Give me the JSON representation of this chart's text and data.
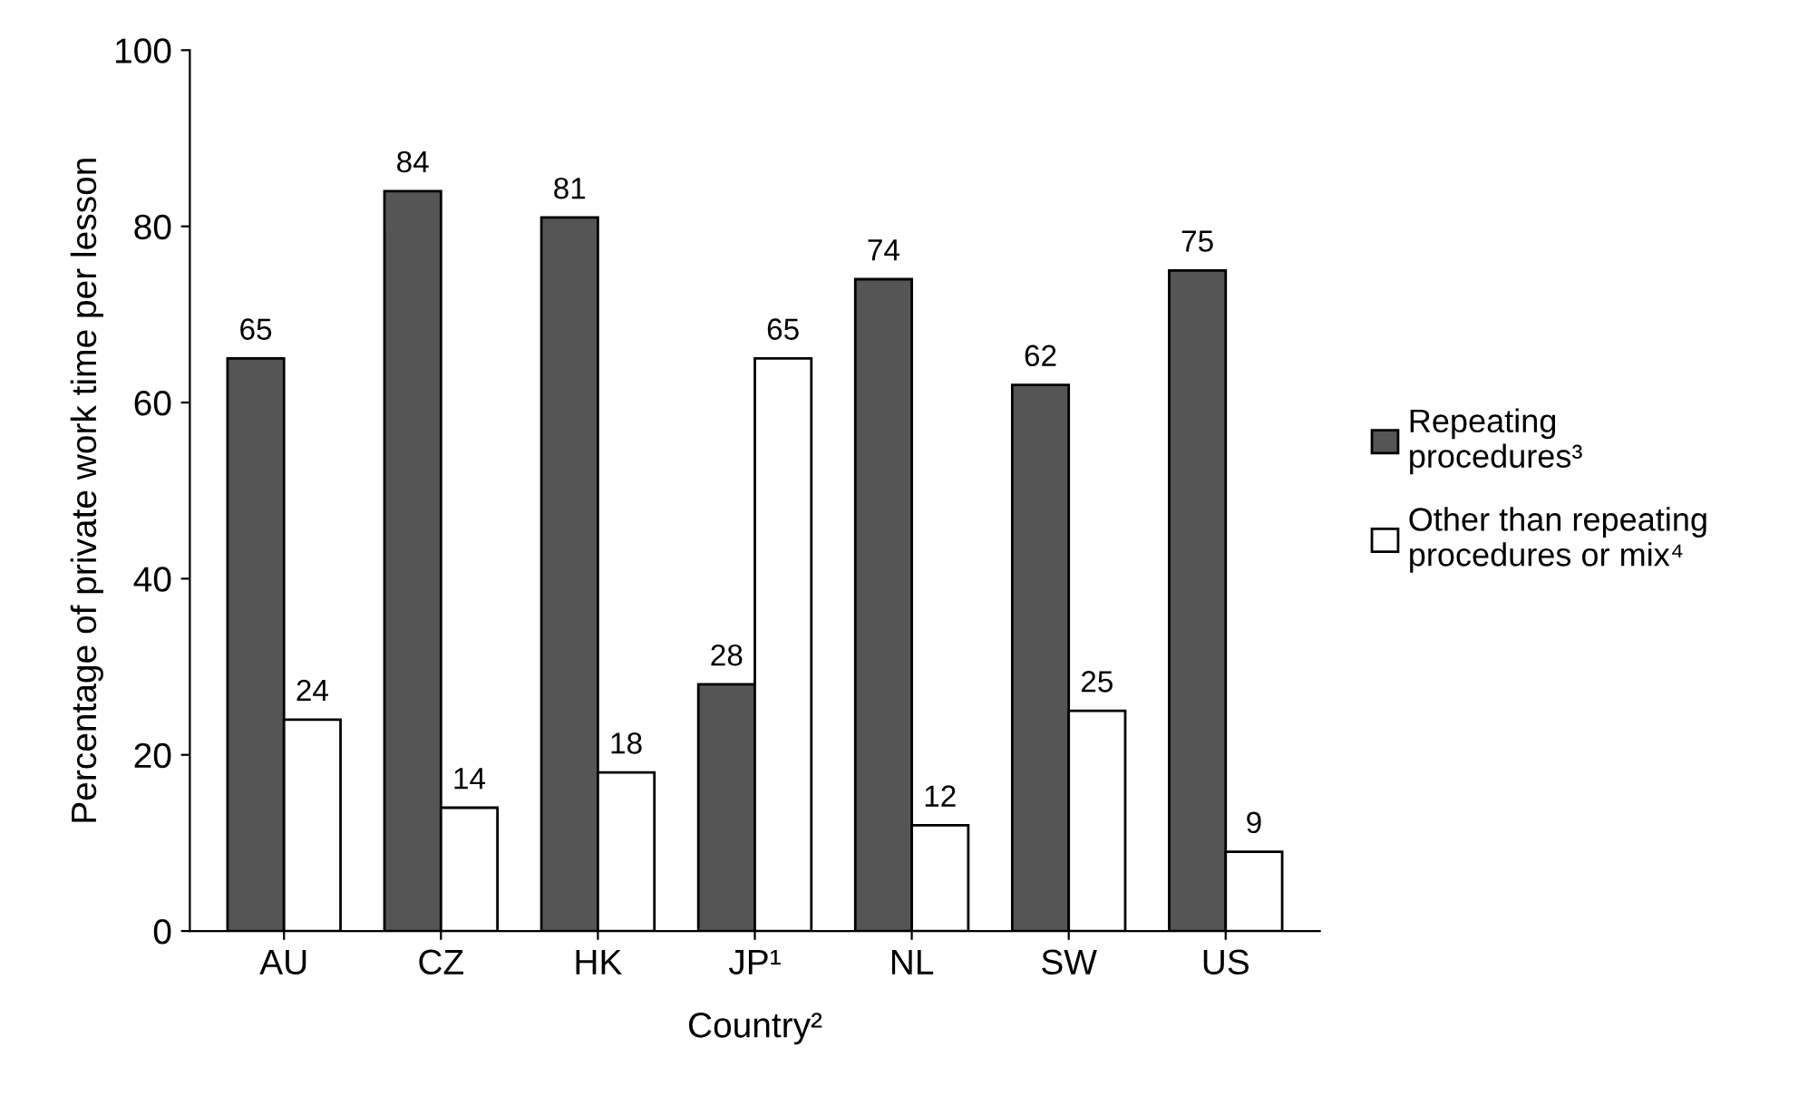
{
  "chart_data": {
    "type": "bar",
    "xlabel": "Country²",
    "ylabel": "Percentage of private work time per lesson",
    "categories": [
      "AU",
      "CZ",
      "HK",
      "JP¹",
      "NL",
      "SW",
      "US"
    ],
    "series": [
      {
        "name": "Repeating\nprocedures³",
        "color": "#555555",
        "values": [
          65,
          84,
          81,
          28,
          74,
          62,
          75
        ]
      },
      {
        "name": "Other than repeating\nprocedures or mix⁴",
        "color": "#ffffff",
        "values": [
          24,
          14,
          18,
          65,
          12,
          25,
          9
        ]
      }
    ],
    "ylim": [
      0,
      100
    ],
    "yticks": [
      0,
      20,
      40,
      60,
      80,
      100
    ],
    "data_labels": true,
    "grid": false,
    "legend": "right"
  }
}
